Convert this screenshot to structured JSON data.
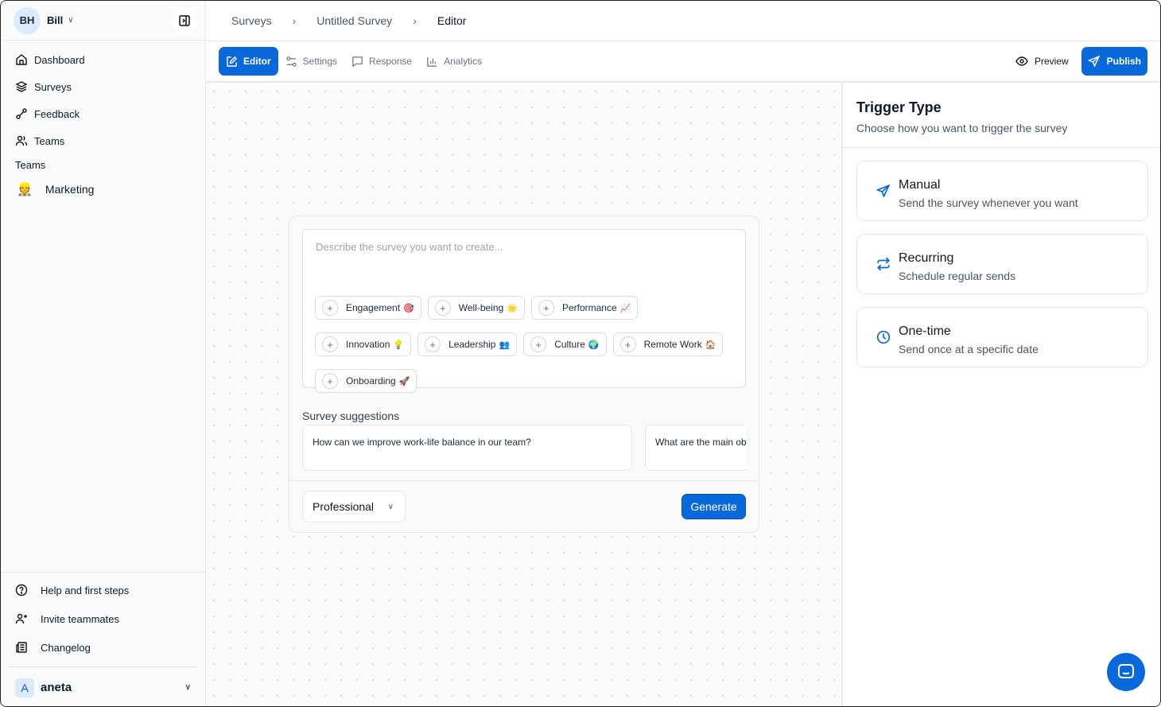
{
  "sidebar": {
    "user_initials": "BH",
    "user_name": "Bill",
    "nav": [
      {
        "label": "Dashboard",
        "icon": "home-icon"
      },
      {
        "label": "Surveys",
        "icon": "layers-icon"
      },
      {
        "label": "Feedback",
        "icon": "feedback-icon"
      },
      {
        "label": "Teams",
        "icon": "users-icon"
      }
    ],
    "teams_heading": "Teams",
    "teams": [
      {
        "label": "Marketing",
        "emoji": "👷"
      }
    ],
    "footer": [
      {
        "label": "Help and first steps",
        "icon": "help-circle-icon"
      },
      {
        "label": "Invite teammates",
        "icon": "user-plus-icon"
      },
      {
        "label": "Changelog",
        "icon": "newspaper-icon"
      }
    ],
    "account": {
      "initial": "A",
      "name": "aneta"
    }
  },
  "breadcrumb": [
    "Surveys",
    "Untitled Survey",
    "Editor"
  ],
  "tabs": [
    {
      "label": "Editor",
      "active": true
    },
    {
      "label": "Settings"
    },
    {
      "label": "Response"
    },
    {
      "label": "Analytics"
    }
  ],
  "actions": {
    "preview": "Preview",
    "publish": "Publish"
  },
  "composer": {
    "placeholder": "Describe the survey you want to create...",
    "chips": [
      {
        "label": "Engagement",
        "emoji": "🎯"
      },
      {
        "label": "Well-being",
        "emoji": "🌟"
      },
      {
        "label": "Performance",
        "emoji": "📈"
      },
      {
        "label": "Innovation",
        "emoji": "💡"
      },
      {
        "label": "Leadership",
        "emoji": "👥"
      },
      {
        "label": "Culture",
        "emoji": "🌍"
      },
      {
        "label": "Remote Work",
        "emoji": "🏠"
      },
      {
        "label": "Onboarding",
        "emoji": "🚀"
      }
    ],
    "suggestions_title": "Survey suggestions",
    "suggestions": [
      "How can we improve work-life balance in our team?",
      "What are the main ob"
    ],
    "tone": "Professional",
    "generate": "Generate"
  },
  "trigger": {
    "title": "Trigger Type",
    "subtitle": "Choose how you want to trigger the survey",
    "options": [
      {
        "title": "Manual",
        "desc": "Send the survey whenever you want",
        "icon": "send-icon"
      },
      {
        "title": "Recurring",
        "desc": "Schedule regular sends",
        "icon": "repeat-icon"
      },
      {
        "title": "One-time",
        "desc": "Send once at a specific date",
        "icon": "clock-icon"
      }
    ]
  },
  "colors": {
    "accent": "#0969da"
  }
}
